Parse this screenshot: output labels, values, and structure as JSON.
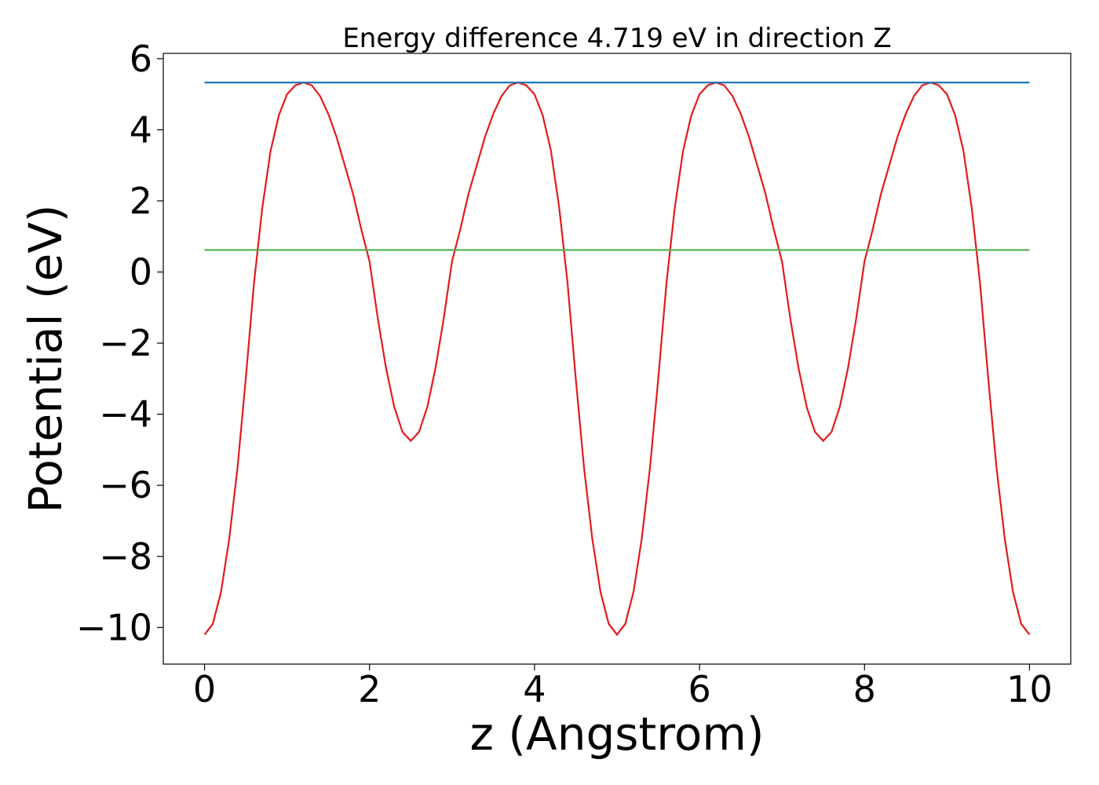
{
  "chart_data": {
    "type": "line",
    "title": "Energy difference 4.719 eV in direction Z",
    "x_label": "z (Angstrom)",
    "y_label": "Potential (eV)",
    "xlim": [
      -0.5,
      10.5
    ],
    "ylim": [
      -11.03,
      6.15
    ],
    "xticks": [
      0,
      2,
      4,
      6,
      8,
      10
    ],
    "yticks": [
      {
        "value": -10,
        "label": "−10"
      },
      {
        "value": -8,
        "label": "−8"
      },
      {
        "value": -6,
        "label": "−6"
      },
      {
        "value": -4,
        "label": "−4"
      },
      {
        "value": -2,
        "label": "−2"
      },
      0,
      2,
      4,
      6
    ],
    "grid": false,
    "series": [
      {
        "color": "#e31a1c",
        "x": [
          0,
          0.1,
          0.2,
          0.3,
          0.4,
          0.5,
          0.6,
          0.7,
          0.8,
          0.9,
          1,
          1.1,
          1.2,
          1.3,
          1.4,
          1.5,
          1.6,
          1.7,
          1.8,
          1.9,
          2,
          2.1,
          2.2,
          2.3,
          2.4,
          2.5,
          2.6,
          2.7,
          2.8,
          2.9,
          3,
          3.1,
          3.2,
          3.3,
          3.4,
          3.5,
          3.6,
          3.7,
          3.8,
          3.9,
          4,
          4.1,
          4.2,
          4.3,
          4.4,
          4.5,
          4.6,
          4.7,
          4.8,
          4.9,
          5,
          5.1,
          5.2,
          5.3,
          5.4,
          5.5,
          5.6,
          5.7,
          5.8,
          5.9,
          6,
          6.1,
          6.2,
          6.3,
          6.4,
          6.5,
          6.6,
          6.7,
          6.8,
          6.9,
          7,
          7.1,
          7.2,
          7.3,
          7.4,
          7.5,
          7.6,
          7.7,
          7.8,
          7.9,
          8,
          8.1,
          8.2,
          8.3,
          8.4,
          8.5,
          8.6,
          8.7,
          8.8,
          8.9,
          9,
          9.1,
          9.2,
          9.3,
          9.4,
          9.5,
          9.6,
          9.7,
          9.8,
          9.9,
          10
        ],
        "values": [
          -10.2,
          -9.9,
          -9.0,
          -7.5,
          -5.5,
          -3.0,
          -0.3,
          1.8,
          3.4,
          4.4,
          5.0,
          5.25,
          5.33,
          5.25,
          4.95,
          4.45,
          3.8,
          3.0,
          2.2,
          1.2,
          0.3,
          -1.3,
          -2.7,
          -3.8,
          -4.5,
          -4.75,
          -4.5,
          -3.8,
          -2.7,
          -1.3,
          0.3,
          1.2,
          2.2,
          3.0,
          3.8,
          4.45,
          4.95,
          5.25,
          5.33,
          5.25,
          5.0,
          4.4,
          3.4,
          1.8,
          -0.3,
          -3.0,
          -5.5,
          -7.5,
          -9.0,
          -9.9,
          -10.2,
          -9.9,
          -9.0,
          -7.5,
          -5.5,
          -3.0,
          -0.3,
          1.8,
          3.4,
          4.4,
          5.0,
          5.25,
          5.33,
          5.25,
          4.95,
          4.45,
          3.8,
          3.0,
          2.2,
          1.2,
          0.3,
          -1.3,
          -2.7,
          -3.8,
          -4.5,
          -4.75,
          -4.5,
          -3.8,
          -2.7,
          -1.3,
          0.3,
          1.2,
          2.2,
          3.0,
          3.8,
          4.45,
          4.95,
          5.25,
          5.33,
          5.25,
          5.0,
          4.4,
          3.4,
          1.8,
          -0.3,
          -3.0,
          -5.5,
          -7.5,
          -9.0,
          -9.9,
          -10.2
        ]
      },
      {
        "color": "#1f77b4",
        "x": [
          0,
          10
        ],
        "values": [
          5.33,
          5.33
        ]
      },
      {
        "color": "#4daf4a",
        "x": [
          0,
          10
        ],
        "values": [
          0.62,
          0.62
        ]
      }
    ]
  }
}
